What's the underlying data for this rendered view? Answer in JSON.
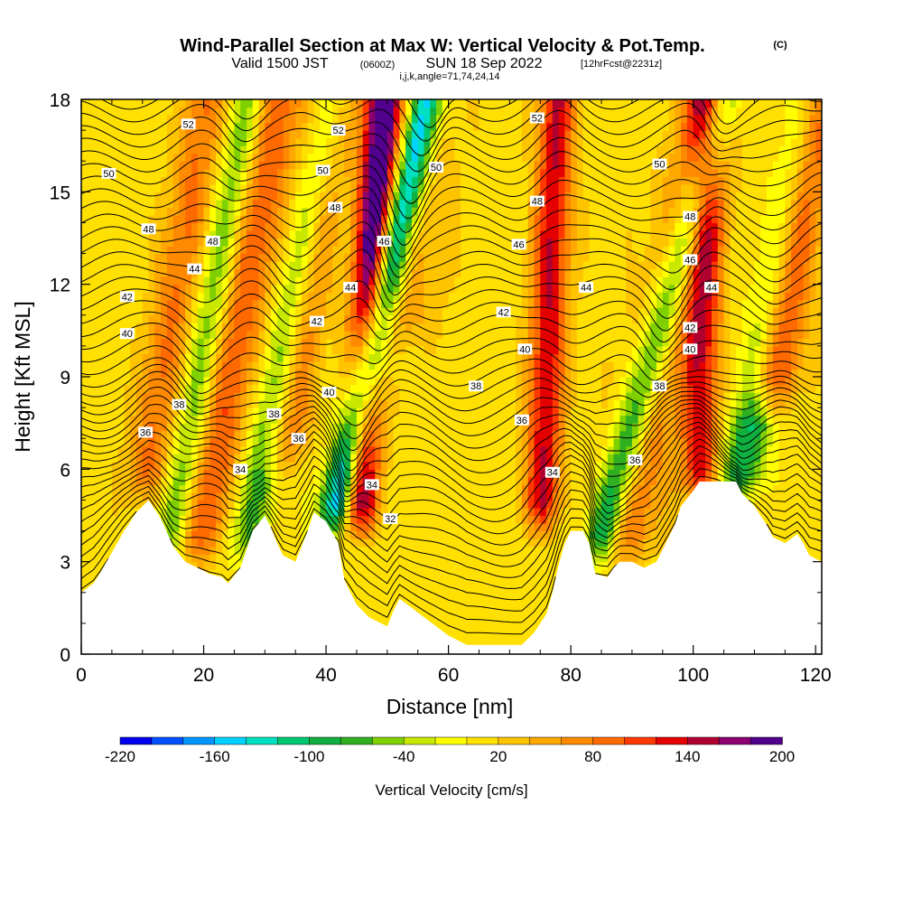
{
  "header": {
    "title_main": "Wind-Parallel Section at Max W: Vertical Velocity & Pot.Temp.",
    "title_tag": "(C)",
    "valid_prefix": "Valid 1500 JST",
    "valid_utc": "(0600Z)",
    "valid_date": "SUN 18 Sep 2022",
    "forecast": "[12hrFcst@2231z]",
    "params": "i,j,k,angle=71,74,24,14"
  },
  "chart_data": {
    "type": "heatmap",
    "title": "Wind-Parallel Section at Max W: Vertical Velocity & Pot.Temp.",
    "xlabel": "Distance [nm]",
    "ylabel": "Height [Kft MSL]",
    "xlim": [
      0,
      121
    ],
    "ylim": [
      0,
      18
    ],
    "x_ticks": [
      0,
      20,
      40,
      60,
      80,
      100,
      120
    ],
    "y_ticks": [
      0,
      3,
      6,
      9,
      12,
      15,
      18
    ],
    "colorbar": {
      "label": "Vertical Velocity [cm/s]",
      "tick_labels": [
        "-220",
        "-160",
        "-100",
        "-40",
        "20",
        "80",
        "140",
        "200"
      ],
      "tick_values": [
        -220,
        -160,
        -100,
        -40,
        20,
        80,
        140,
        200
      ],
      "colors": [
        "#0000ee",
        "#0050ff",
        "#0096ff",
        "#00d2ff",
        "#00e0c0",
        "#00c870",
        "#10b040",
        "#30b020",
        "#7ed000",
        "#c8e800",
        "#ffff00",
        "#ffe000",
        "#ffc400",
        "#ffa800",
        "#ff8a00",
        "#ff6a00",
        "#ff3800",
        "#e40000",
        "#b00030",
        "#8c0070",
        "#50008c"
      ]
    },
    "terrain": [
      [
        0,
        2.0
      ],
      [
        2,
        2.3
      ],
      [
        3,
        2.6
      ],
      [
        5,
        3.3
      ],
      [
        7,
        4.0
      ],
      [
        9,
        4.6
      ],
      [
        11,
        5.0
      ],
      [
        13,
        4.4
      ],
      [
        15,
        3.5
      ],
      [
        17,
        3.0
      ],
      [
        19,
        2.8
      ],
      [
        21,
        2.6
      ],
      [
        23,
        2.5
      ],
      [
        24,
        2.3
      ],
      [
        26,
        2.8
      ],
      [
        27,
        3.4
      ],
      [
        28,
        4.0
      ],
      [
        30,
        4.5
      ],
      [
        31,
        4.1
      ],
      [
        32,
        3.6
      ],
      [
        33,
        3.2
      ],
      [
        35,
        3.0
      ],
      [
        36,
        3.5
      ],
      [
        37,
        4.0
      ],
      [
        38,
        4.6
      ],
      [
        40,
        4.3
      ],
      [
        42,
        3.6
      ],
      [
        43,
        2.4
      ],
      [
        45,
        1.6
      ],
      [
        47,
        1.2
      ],
      [
        49,
        1.0
      ],
      [
        50,
        0.9
      ],
      [
        51,
        1.4
      ],
      [
        52,
        1.8
      ],
      [
        54,
        1.5
      ],
      [
        56,
        1.2
      ],
      [
        58,
        0.9
      ],
      [
        60,
        0.6
      ],
      [
        62,
        0.4
      ],
      [
        63,
        0.3
      ],
      [
        72,
        0.3
      ],
      [
        74,
        0.7
      ],
      [
        76,
        1.3
      ],
      [
        77,
        2.0
      ],
      [
        78,
        2.9
      ],
      [
        79,
        3.6
      ],
      [
        80,
        4.0
      ],
      [
        82,
        4.0
      ],
      [
        83,
        3.6
      ],
      [
        84,
        2.6
      ],
      [
        86,
        2.5
      ],
      [
        87,
        2.8
      ],
      [
        88,
        3.0
      ],
      [
        90,
        3.0
      ],
      [
        92,
        2.8
      ],
      [
        94,
        3.0
      ],
      [
        95,
        3.4
      ],
      [
        96,
        3.8
      ],
      [
        97,
        4.2
      ],
      [
        98,
        4.8
      ],
      [
        100,
        5.3
      ],
      [
        101,
        5.6
      ],
      [
        107,
        5.6
      ],
      [
        108,
        5.2
      ],
      [
        110,
        4.8
      ],
      [
        112,
        4.2
      ],
      [
        113,
        3.8
      ],
      [
        115,
        3.6
      ],
      [
        117,
        3.9
      ],
      [
        118,
        3.6
      ],
      [
        119,
        3.2
      ],
      [
        121,
        3.0
      ]
    ],
    "updrafts": [
      {
        "x": 10,
        "top": 5,
        "w": 3.5,
        "lean": 0.8,
        "amp": 75
      },
      {
        "x": 19,
        "top": 3,
        "w": 4.0,
        "lean": 0.9,
        "amp": 90
      },
      {
        "x": 33,
        "top": 6,
        "w": 3.5,
        "lean": 0.7,
        "amp": 70
      },
      {
        "x": 45,
        "top": 4,
        "w": 3.0,
        "lean": 0.3,
        "amp": 190
      },
      {
        "x": 51,
        "top": 10,
        "w": 6.0,
        "lean": 0.5,
        "amp": 55
      },
      {
        "x": 75,
        "top": 4,
        "w": 3.0,
        "lean": 0.2,
        "amp": 130
      },
      {
        "x": 88,
        "top": 3,
        "w": 5.0,
        "lean": 1.0,
        "amp": 80
      },
      {
        "x": 101,
        "top": 5,
        "w": 3.0,
        "lean": 0.1,
        "amp": 120
      },
      {
        "x": 112,
        "top": 8,
        "w": 4.0,
        "lean": 0.8,
        "amp": 140
      }
    ],
    "downdrafts": [
      {
        "x": 14,
        "top": 3,
        "w": 3.0,
        "lean": 0.9,
        "amp": 70
      },
      {
        "x": 26,
        "top": 3,
        "w": 3.0,
        "lean": 1.0,
        "amp": 80
      },
      {
        "x": 41,
        "top": 4,
        "w": 2.8,
        "lean": 1.1,
        "amp": 210
      },
      {
        "x": 84,
        "top": 3,
        "w": 3.0,
        "lean": 1.4,
        "amp": 140
      },
      {
        "x": 107,
        "top": 5,
        "w": 3.5,
        "lean": 0.9,
        "amp": 110
      }
    ],
    "theta_levels": [
      32,
      34,
      36,
      38,
      40,
      42,
      44,
      46,
      48,
      50,
      52
    ],
    "theta_labels": [
      {
        "text": "32",
        "x": 50.5,
        "y": 4.4
      },
      {
        "text": "34",
        "x": 26,
        "y": 6.0
      },
      {
        "text": "34",
        "x": 47.5,
        "y": 5.5
      },
      {
        "text": "34",
        "x": 77,
        "y": 5.9
      },
      {
        "text": "36",
        "x": 10.5,
        "y": 7.2
      },
      {
        "text": "36",
        "x": 35.5,
        "y": 7.0
      },
      {
        "text": "36",
        "x": 72,
        "y": 7.6
      },
      {
        "text": "36",
        "x": 90.5,
        "y": 6.3
      },
      {
        "text": "38",
        "x": 16,
        "y": 8.1
      },
      {
        "text": "38",
        "x": 31.5,
        "y": 7.8
      },
      {
        "text": "38",
        "x": 64.5,
        "y": 8.7
      },
      {
        "text": "38",
        "x": 94.5,
        "y": 8.7
      },
      {
        "text": "40",
        "x": 7.5,
        "y": 10.4
      },
      {
        "text": "40",
        "x": 40.5,
        "y": 8.5
      },
      {
        "text": "40",
        "x": 72.5,
        "y": 9.9
      },
      {
        "text": "40",
        "x": 99.5,
        "y": 9.9
      },
      {
        "text": "42",
        "x": 7.5,
        "y": 11.6
      },
      {
        "text": "42",
        "x": 38.5,
        "y": 10.8
      },
      {
        "text": "42",
        "x": 69,
        "y": 11.1
      },
      {
        "text": "42",
        "x": 99.5,
        "y": 10.6
      },
      {
        "text": "44",
        "x": 18.5,
        "y": 12.5
      },
      {
        "text": "44",
        "x": 44,
        "y": 11.9
      },
      {
        "text": "44",
        "x": 82.5,
        "y": 11.9
      },
      {
        "text": "44",
        "x": 103,
        "y": 11.9
      },
      {
        "text": "46",
        "x": 49.5,
        "y": 13.4
      },
      {
        "text": "46",
        "x": 71.5,
        "y": 13.3
      },
      {
        "text": "46",
        "x": 99.5,
        "y": 12.8
      },
      {
        "text": "48",
        "x": 11,
        "y": 13.8
      },
      {
        "text": "48",
        "x": 21.5,
        "y": 13.4
      },
      {
        "text": "48",
        "x": 41.5,
        "y": 14.5
      },
      {
        "text": "48",
        "x": 74.5,
        "y": 14.7
      },
      {
        "text": "48",
        "x": 99.5,
        "y": 14.2
      },
      {
        "text": "50",
        "x": 4.5,
        "y": 15.6
      },
      {
        "text": "50",
        "x": 39.5,
        "y": 15.7
      },
      {
        "text": "50",
        "x": 58,
        "y": 15.8
      },
      {
        "text": "50",
        "x": 94.5,
        "y": 15.9
      },
      {
        "text": "52",
        "x": 17.5,
        "y": 17.2
      },
      {
        "text": "52",
        "x": 42,
        "y": 17.0
      },
      {
        "text": "52",
        "x": 74.5,
        "y": 17.4
      }
    ]
  }
}
